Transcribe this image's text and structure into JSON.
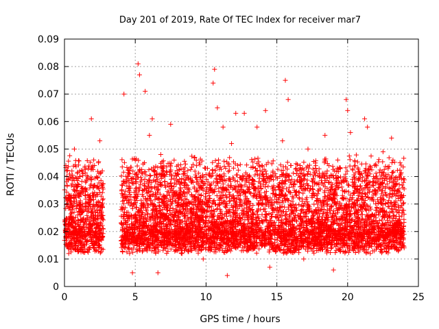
{
  "chart_data": {
    "type": "scatter",
    "title": "Day 201 of 2019, Rate Of TEC Index for receiver mar7",
    "xlabel": "GPS time / hours",
    "ylabel": "ROTI / TECUs",
    "xlim": [
      0,
      25
    ],
    "ylim": [
      0,
      0.09
    ],
    "x_ticks": [
      0,
      5,
      10,
      15,
      20,
      25
    ],
    "y_ticks": [
      0,
      0.01,
      0.02,
      0.03,
      0.04,
      0.05,
      0.06,
      0.07,
      0.08,
      0.09
    ],
    "x_tick_labels": [
      "0",
      "5",
      "10",
      "15",
      "20",
      "25"
    ],
    "y_tick_labels": [
      "0",
      "0.01",
      "0.02",
      "0.03",
      "0.04",
      "0.05",
      "0.06",
      "0.07",
      "0.08",
      "0.09"
    ],
    "grid": true,
    "marker": "+",
    "color": "#ff0000",
    "series": [
      {
        "name": "ROTI",
        "description_points": "dense scatter sample; data gap between ~2.8 h and ~4.0 h",
        "points": [
          [
            0.1,
            0.044
          ],
          [
            0.2,
            0.03
          ],
          [
            0.3,
            0.012
          ],
          [
            0.5,
            0.025
          ],
          [
            0.7,
            0.05
          ],
          [
            0.8,
            0.019
          ],
          [
            0.9,
            0.035
          ],
          [
            1.0,
            0.022
          ],
          [
            1.1,
            0.016
          ],
          [
            1.3,
            0.041
          ],
          [
            1.5,
            0.028
          ],
          [
            1.7,
            0.014
          ],
          [
            1.9,
            0.061
          ],
          [
            2.0,
            0.033
          ],
          [
            2.2,
            0.02
          ],
          [
            2.4,
            0.045
          ],
          [
            2.5,
            0.053
          ],
          [
            2.6,
            0.027
          ],
          [
            2.7,
            0.018
          ],
          [
            4.1,
            0.031
          ],
          [
            4.2,
            0.07
          ],
          [
            4.3,
            0.024
          ],
          [
            4.5,
            0.04
          ],
          [
            4.6,
            0.012
          ],
          [
            4.8,
            0.005
          ],
          [
            5.0,
            0.046
          ],
          [
            5.2,
            0.081
          ],
          [
            5.3,
            0.077
          ],
          [
            5.5,
            0.035
          ],
          [
            5.7,
            0.071
          ],
          [
            5.8,
            0.022
          ],
          [
            6.0,
            0.055
          ],
          [
            6.2,
            0.061
          ],
          [
            6.4,
            0.018
          ],
          [
            6.6,
            0.005
          ],
          [
            6.8,
            0.048
          ],
          [
            7.0,
            0.03
          ],
          [
            7.3,
            0.015
          ],
          [
            7.5,
            0.059
          ],
          [
            7.8,
            0.026
          ],
          [
            8.0,
            0.041
          ],
          [
            8.3,
            0.012
          ],
          [
            8.6,
            0.037
          ],
          [
            8.9,
            0.02
          ],
          [
            9.2,
            0.047
          ],
          [
            9.5,
            0.028
          ],
          [
            9.8,
            0.01
          ],
          [
            10.1,
            0.043
          ],
          [
            10.5,
            0.074
          ],
          [
            10.6,
            0.079
          ],
          [
            10.8,
            0.065
          ],
          [
            11.0,
            0.033
          ],
          [
            11.2,
            0.058
          ],
          [
            11.5,
            0.004
          ],
          [
            11.8,
            0.052
          ],
          [
            12.1,
            0.063
          ],
          [
            12.4,
            0.025
          ],
          [
            12.7,
            0.063
          ],
          [
            13.0,
            0.04
          ],
          [
            13.3,
            0.015
          ],
          [
            13.6,
            0.058
          ],
          [
            13.9,
            0.03
          ],
          [
            14.2,
            0.064
          ],
          [
            14.5,
            0.007
          ],
          [
            14.8,
            0.036
          ],
          [
            15.1,
            0.021
          ],
          [
            15.4,
            0.053
          ],
          [
            15.6,
            0.075
          ],
          [
            15.8,
            0.068
          ],
          [
            16.0,
            0.044
          ],
          [
            16.3,
            0.017
          ],
          [
            16.6,
            0.038
          ],
          [
            16.9,
            0.01
          ],
          [
            17.2,
            0.05
          ],
          [
            17.5,
            0.027
          ],
          [
            17.8,
            0.042
          ],
          [
            18.1,
            0.014
          ],
          [
            18.4,
            0.055
          ],
          [
            18.7,
            0.032
          ],
          [
            19.0,
            0.006
          ],
          [
            19.3,
            0.046
          ],
          [
            19.6,
            0.023
          ],
          [
            19.9,
            0.068
          ],
          [
            20.0,
            0.064
          ],
          [
            20.2,
            0.056
          ],
          [
            20.5,
            0.035
          ],
          [
            20.8,
            0.019
          ],
          [
            21.0,
            0.041
          ],
          [
            21.2,
            0.061
          ],
          [
            21.4,
            0.058
          ],
          [
            21.6,
            0.012
          ],
          [
            21.9,
            0.044
          ],
          [
            22.2,
            0.026
          ],
          [
            22.5,
            0.049
          ],
          [
            22.8,
            0.015
          ],
          [
            23.1,
            0.054
          ],
          [
            23.4,
            0.033
          ],
          [
            23.7,
            0.045
          ],
          [
            23.9,
            0.02
          ]
        ]
      }
    ]
  }
}
